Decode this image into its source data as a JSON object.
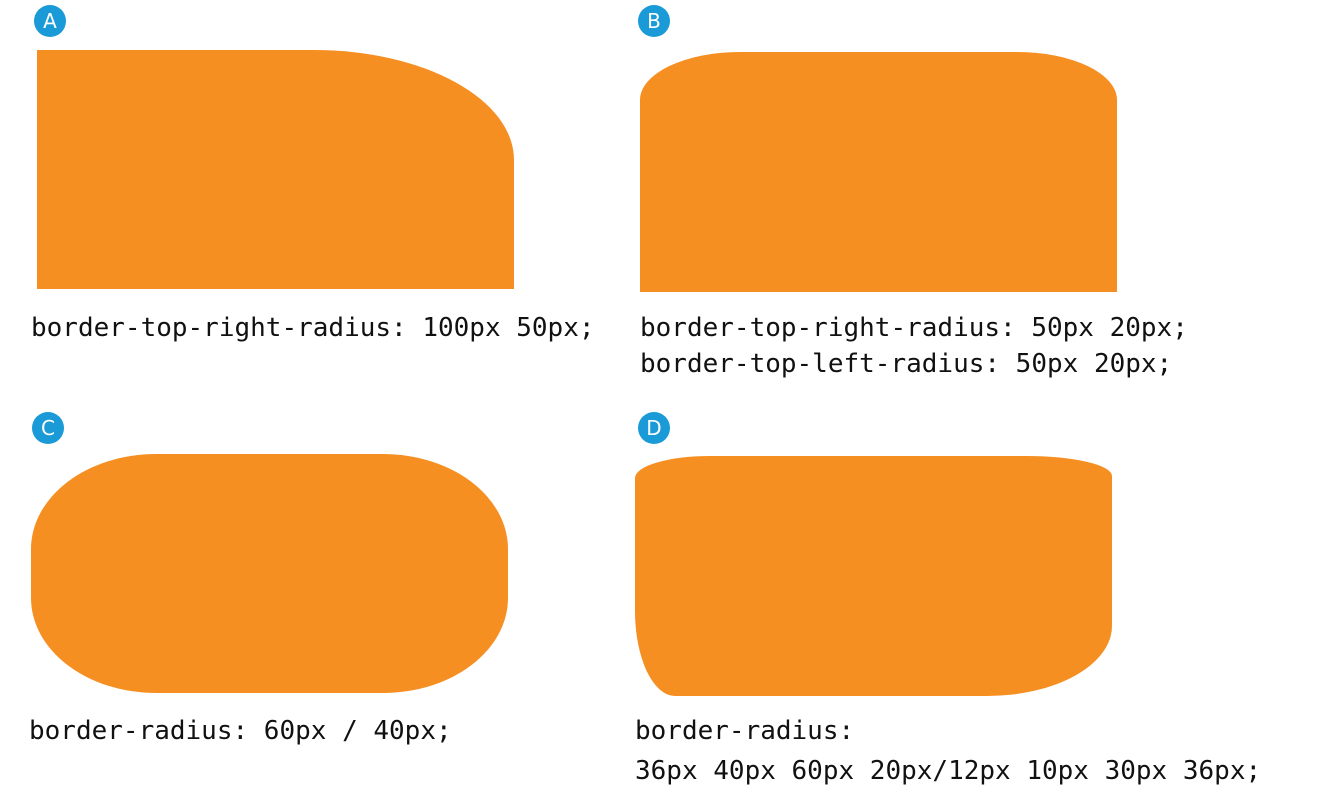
{
  "panels": {
    "a": {
      "badge": "A",
      "code_lines": [
        "border-top-right-radius: 100px 50px;"
      ]
    },
    "b": {
      "badge": "B",
      "code_lines": [
        "border-top-right-radius: 50px 20px;",
        "border-top-left-radius: 50px 20px;"
      ]
    },
    "c": {
      "badge": "C",
      "code_lines": [
        "border-radius: 60px / 40px;"
      ]
    },
    "d": {
      "badge": "D",
      "code_lines": [
        "border-radius:",
        "36px 40px 60px 20px/12px 10px 30px 36px;"
      ]
    }
  },
  "colors": {
    "shape_fill": "#f68f22",
    "badge_fill": "#1a9ad6",
    "badge_text": "#ffffff",
    "code_text": "#111111"
  }
}
